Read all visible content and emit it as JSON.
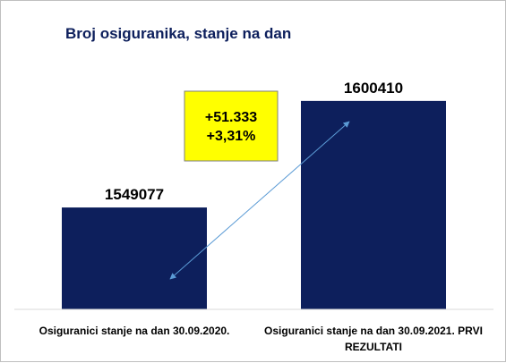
{
  "chart_data": {
    "type": "bar",
    "title": "Broj osiguranika, stanje na dan",
    "categories": [
      [
        "Osiguranici stanje na dan 30.09.2020."
      ],
      [
        "Osiguranici stanje na dan 30.09.2021. PRVI",
        "REZULTATI"
      ]
    ],
    "values": [
      1549077,
      1600410
    ],
    "data_labels": [
      "1549077",
      "1600410"
    ],
    "annotation": {
      "lines": [
        "+51.333",
        "+3,31%"
      ]
    },
    "ylim": [
      1500000,
      1615000
    ],
    "grid": false,
    "legend": "none",
    "bar_color": "#0d1f5c",
    "annotation_fill": "#ffff00",
    "arrow_color": "#5b9bd5",
    "title_color": "#0d1f5c",
    "text_color": "#000000"
  }
}
